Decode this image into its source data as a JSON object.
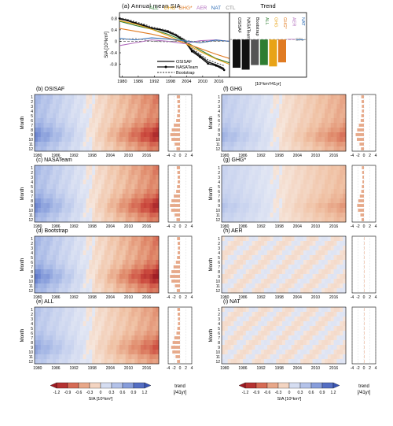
{
  "colors": {
    "ALL": "#2e7d32",
    "GHG": "#e8a317",
    "GHG*": "#e07b22",
    "AER": "#b36fbf",
    "NAT": "#2f6db5",
    "CTL": "#8a8a8a",
    "OSISAF": "#111111",
    "NASATeam": "#111111",
    "Bootstrap": "#555555"
  },
  "chart_data": [
    {
      "id": "a",
      "type": "line",
      "panel_label": "(a) Annual mean SIA",
      "ylabel": "SIA [10⁶km²]",
      "xlim": [
        1979,
        2020
      ],
      "ylim": [
        -1.25,
        1.0
      ],
      "xticks": [
        "1980",
        "1986",
        "1992",
        "1998",
        "2004",
        "2010",
        "2016"
      ],
      "yticks": [
        "0.8",
        "0.4",
        "0",
        "-0.4",
        "-0.8"
      ],
      "legend_top": [
        "ALL",
        "GHG",
        "GHG*",
        "AER",
        "NAT",
        "CTL"
      ],
      "legend_obs": [
        "OSISAF",
        "NASATeam",
        "Bootstrap"
      ],
      "series": [
        {
          "name": "OSISAF",
          "x": [
            1979,
            1982,
            1985,
            1988,
            1991,
            1994,
            1997,
            2000,
            2003,
            2006,
            2009,
            2012,
            2015,
            2018
          ],
          "values": [
            0.78,
            0.72,
            0.62,
            0.55,
            0.45,
            0.4,
            0.32,
            0.2,
            0.02,
            -0.3,
            -0.5,
            -0.72,
            -0.82,
            -0.95
          ]
        },
        {
          "name": "NASATeam",
          "x": [
            1979,
            1982,
            1985,
            1988,
            1991,
            1994,
            1997,
            2000,
            2003,
            2006,
            2009,
            2012,
            2015,
            2018
          ],
          "values": [
            0.8,
            0.73,
            0.64,
            0.56,
            0.46,
            0.42,
            0.35,
            0.22,
            0.05,
            -0.35,
            -0.55,
            -0.78,
            -0.85,
            -1.0
          ]
        },
        {
          "name": "Bootstrap",
          "x": [
            1979,
            1982,
            1985,
            1988,
            1991,
            1994,
            1997,
            2000,
            2003,
            2006,
            2009,
            2012,
            2015,
            2018
          ],
          "values": [
            0.82,
            0.76,
            0.68,
            0.6,
            0.5,
            0.44,
            0.38,
            0.25,
            0.08,
            -0.25,
            -0.45,
            -0.65,
            -0.75,
            -0.85
          ]
        },
        {
          "name": "ALL",
          "x": [
            1979,
            1985,
            1991,
            1997,
            2003,
            2009,
            2015,
            2020
          ],
          "values": [
            0.7,
            0.55,
            0.42,
            0.25,
            0.02,
            -0.3,
            -0.6,
            -0.75
          ]
        },
        {
          "name": "GHG",
          "x": [
            1979,
            1985,
            1991,
            1997,
            2003,
            2009,
            2015,
            2020
          ],
          "values": [
            0.72,
            0.6,
            0.42,
            0.2,
            -0.05,
            -0.35,
            -0.62,
            -0.8
          ]
        },
        {
          "name": "GHG*",
          "x": [
            1979,
            1985,
            1991,
            1997,
            2003,
            2009,
            2015,
            2020
          ],
          "values": [
            0.45,
            0.35,
            0.25,
            0.12,
            -0.05,
            -0.25,
            -0.45,
            -0.6
          ]
        },
        {
          "name": "AER",
          "x": [
            1979,
            1985,
            1991,
            1997,
            2003,
            2009,
            2015,
            2020
          ],
          "values": [
            -0.15,
            -0.05,
            0.05,
            0.0,
            -0.08,
            0.02,
            0.05,
            0.0
          ]
        },
        {
          "name": "NAT",
          "x": [
            1979,
            1985,
            1991,
            1997,
            2003,
            2009,
            2015,
            2020
          ],
          "values": [
            0.1,
            0.05,
            0.12,
            0.08,
            0.02,
            -0.05,
            0.04,
            0.0
          ]
        },
        {
          "name": "CTL",
          "x": [
            1979,
            1985,
            1991,
            1997,
            2003,
            2009,
            2015,
            2020
          ],
          "values": [
            0.05,
            0.1,
            0.0,
            -0.02,
            0.05,
            -0.05,
            0.02,
            0.0
          ]
        }
      ]
    },
    {
      "id": "trend",
      "type": "bar",
      "panel_label": "Trend",
      "unit": "[10⁶km²/41yr]",
      "categories": [
        "OSISAF",
        "NASATeam",
        "Bootstrap",
        "ALL",
        "GHG",
        "GHG*",
        "AER",
        "NAT"
      ],
      "values": [
        -1.05,
        -1.12,
        -0.95,
        -0.95,
        -1.0,
        -0.85,
        0.02,
        0.0
      ],
      "ylim": [
        -1.4,
        1.0
      ],
      "ctl_label": "CTL"
    },
    {
      "id": "heatmaps",
      "type": "heatmap",
      "months": [
        "1",
        "2",
        "3",
        "4",
        "5",
        "6",
        "7",
        "8",
        "9",
        "10",
        "11",
        "12"
      ],
      "ylabel": "Month",
      "xticks": [
        "1980",
        "1986",
        "1992",
        "1998",
        "2004",
        "2010",
        "2016"
      ],
      "trend_xticks": [
        "-4",
        "-2",
        "0",
        "2",
        "4"
      ],
      "panels": [
        {
          "label": "(b) OSISAF",
          "amp": 1.0,
          "neg": [
            0.4,
            0.4,
            0.35,
            0.35,
            0.35,
            0.45,
            0.6,
            0.85,
            1.0,
            0.9,
            0.6,
            0.45
          ],
          "trend": [
            -1.1,
            -0.9,
            -0.8,
            -0.8,
            -1.0,
            -1.3,
            -2.1,
            -2.8,
            -3.3,
            -2.9,
            -1.8,
            -1.2
          ]
        },
        {
          "label": "(c) NASATeam",
          "amp": 1.0,
          "neg": [
            0.4,
            0.4,
            0.35,
            0.35,
            0.35,
            0.45,
            0.6,
            0.85,
            1.0,
            0.9,
            0.6,
            0.45
          ],
          "trend": [
            -1.1,
            -0.9,
            -0.8,
            -0.8,
            -1.0,
            -1.3,
            -2.1,
            -2.9,
            -3.4,
            -3.0,
            -1.8,
            -1.2
          ]
        },
        {
          "label": "(d) Bootstrap",
          "amp": 1.05,
          "neg": [
            0.4,
            0.4,
            0.35,
            0.35,
            0.35,
            0.45,
            0.6,
            0.9,
            1.05,
            0.9,
            0.6,
            0.45
          ],
          "trend": [
            -1.0,
            -0.8,
            -0.7,
            -0.8,
            -1.0,
            -1.4,
            -2.2,
            -2.9,
            -3.4,
            -2.9,
            -1.7,
            -1.1
          ]
        },
        {
          "label": "(e) ALL",
          "amp": 0.85,
          "neg": [
            0.35,
            0.35,
            0.3,
            0.3,
            0.3,
            0.4,
            0.55,
            0.75,
            0.9,
            0.8,
            0.5,
            0.35
          ],
          "trend": [
            -0.9,
            -0.8,
            -0.7,
            -0.7,
            -0.9,
            -1.2,
            -1.9,
            -2.5,
            -3.0,
            -2.6,
            -1.5,
            -1.0
          ]
        },
        {
          "label": "(f) GHG",
          "amp": 0.75,
          "neg": [
            0.3,
            0.3,
            0.3,
            0.3,
            0.3,
            0.35,
            0.45,
            0.6,
            0.8,
            0.75,
            0.5,
            0.35
          ],
          "trend": [
            -0.9,
            -0.8,
            -0.7,
            -0.7,
            -0.9,
            -1.1,
            -1.7,
            -2.3,
            -2.8,
            -2.4,
            -1.5,
            -1.0
          ]
        },
        {
          "label": "(g) GHG*",
          "amp": 0.6,
          "neg": [
            0.25,
            0.25,
            0.25,
            0.25,
            0.25,
            0.3,
            0.4,
            0.5,
            0.7,
            0.6,
            0.4,
            0.3
          ],
          "trend": [
            -0.7,
            -0.6,
            -0.5,
            -0.5,
            -0.7,
            -0.9,
            -1.4,
            -1.9,
            -2.3,
            -2.0,
            -1.2,
            -0.8
          ]
        },
        {
          "label": "(h) AER",
          "amp": 0.12,
          "neg": [
            0.1,
            0.1,
            0.1,
            0.1,
            0.1,
            0.1,
            0.1,
            0.1,
            0.1,
            0.1,
            0.1,
            0.1
          ],
          "trend": [
            0.05,
            0.02,
            0.0,
            0.0,
            0.03,
            0.05,
            0.08,
            0.1,
            0.1,
            0.08,
            0.05,
            0.03
          ]
        },
        {
          "label": "(i) NAT",
          "amp": 0.1,
          "neg": [
            0.1,
            0.1,
            0.1,
            0.1,
            0.1,
            0.1,
            0.1,
            0.1,
            0.1,
            0.1,
            0.1,
            0.1
          ],
          "trend": [
            0.02,
            0.0,
            0.02,
            0.0,
            0.02,
            0.03,
            0.04,
            0.05,
            0.05,
            0.04,
            0.03,
            0.02
          ]
        }
      ],
      "colorbar": {
        "ticks": [
          "-1.2",
          "-0.9",
          "-0.6",
          "-0.3",
          "0",
          "0.3",
          "0.6",
          "0.9",
          "1.2"
        ],
        "label": "SIA [10⁶km²]",
        "trend_label": "trend\n[/41yr]"
      }
    }
  ]
}
